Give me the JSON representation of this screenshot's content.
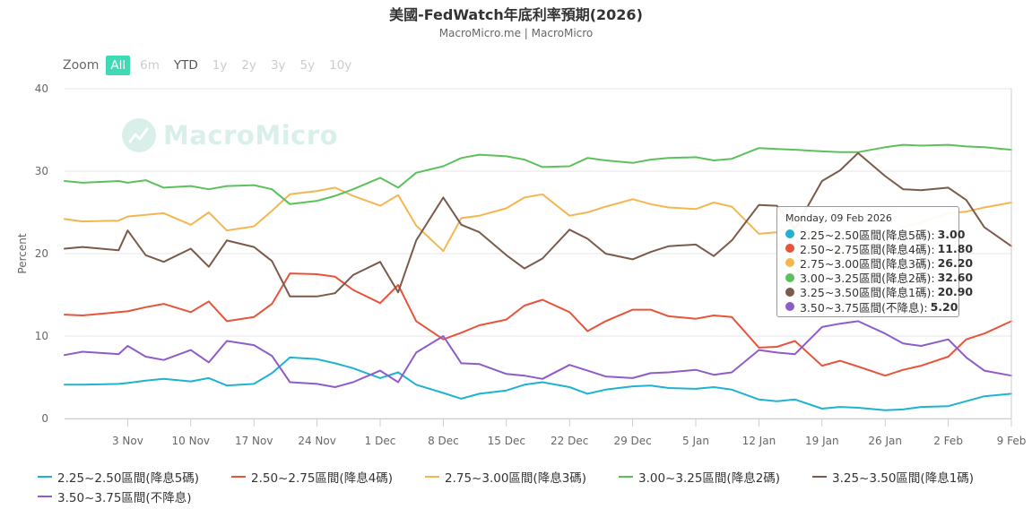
{
  "header": {
    "title": "美國-FedWatch年底利率預期(2026)",
    "subtitle": "MacroMicro.me | MacroMicro"
  },
  "watermark": {
    "text": "MacroMicro",
    "icon": "macromicro-logo-icon"
  },
  "zoom": {
    "label": "Zoom",
    "buttons": [
      {
        "label": "All",
        "state": "active"
      },
      {
        "label": "6m",
        "state": "disabled"
      },
      {
        "label": "YTD",
        "state": "enabled"
      },
      {
        "label": "1y",
        "state": "disabled"
      },
      {
        "label": "2y",
        "state": "disabled"
      },
      {
        "label": "3y",
        "state": "disabled"
      },
      {
        "label": "5y",
        "state": "disabled"
      },
      {
        "label": "10y",
        "state": "disabled"
      }
    ]
  },
  "tooltip": {
    "date": "Monday, 09 Feb 2026",
    "rows": [
      {
        "label": "2.25~2.50區間(降息5碼):",
        "value": "3.00",
        "color": "#1fb2d1"
      },
      {
        "label": "2.50~2.75區間(降息4碼):",
        "value": "11.80",
        "color": "#e8533b"
      },
      {
        "label": "2.75~3.00區間(降息3碼):",
        "value": "26.20",
        "color": "#f5b64f"
      },
      {
        "label": "3.00~3.25區間(降息2碼):",
        "value": "32.60",
        "color": "#5cc15c"
      },
      {
        "label": "3.25~3.50區間(降息1碼):",
        "value": "20.90",
        "color": "#7b5a4b"
      },
      {
        "label": "3.50~3.75區間(不降息):",
        "value": "5.20",
        "color": "#8e5cc9"
      }
    ]
  },
  "chart_data": {
    "type": "line",
    "title": "美國-FedWatch年底利率預期(2026)",
    "subtitle": "MacroMicro.me | MacroMicro",
    "ylabel": "Percent",
    "xlabel": "",
    "ylim": [
      0,
      40
    ],
    "yticks": [
      "0",
      "10",
      "20",
      "30",
      "40"
    ],
    "xlim": [
      "2025-10-27",
      "2026-02-09"
    ],
    "xticks": [
      {
        "label": "3 Nov",
        "date": "2025-11-03"
      },
      {
        "label": "10 Nov",
        "date": "2025-11-10"
      },
      {
        "label": "17 Nov",
        "date": "2025-11-17"
      },
      {
        "label": "24 Nov",
        "date": "2025-11-24"
      },
      {
        "label": "1 Dec",
        "date": "2025-12-01"
      },
      {
        "label": "8 Dec",
        "date": "2025-12-08"
      },
      {
        "label": "15 Dec",
        "date": "2025-12-15"
      },
      {
        "label": "22 Dec",
        "date": "2025-12-22"
      },
      {
        "label": "29 Dec",
        "date": "2025-12-29"
      },
      {
        "label": "5 Jan",
        "date": "2026-01-05"
      },
      {
        "label": "12 Jan",
        "date": "2026-01-12"
      },
      {
        "label": "19 Jan",
        "date": "2026-01-19"
      },
      {
        "label": "26 Jan",
        "date": "2026-01-26"
      },
      {
        "label": "2 Feb",
        "date": "2026-02-02"
      },
      {
        "label": "9 Feb",
        "date": "2026-02-09"
      }
    ],
    "grid": true,
    "legend_position": "bottom",
    "crosshair_date": "2026-02-09",
    "x": [
      "2025-10-27",
      "2025-10-29",
      "2025-11-02",
      "2025-11-03",
      "2025-11-05",
      "2025-11-07",
      "2025-11-10",
      "2025-11-12",
      "2025-11-14",
      "2025-11-17",
      "2025-11-19",
      "2025-11-21",
      "2025-11-24",
      "2025-11-26",
      "2025-11-28",
      "2025-12-01",
      "2025-12-03",
      "2025-12-05",
      "2025-12-08",
      "2025-12-10",
      "2025-12-12",
      "2025-12-15",
      "2025-12-17",
      "2025-12-19",
      "2025-12-22",
      "2025-12-24",
      "2025-12-26",
      "2025-12-29",
      "2025-12-31",
      "2026-01-02",
      "2026-01-05",
      "2026-01-07",
      "2026-01-09",
      "2026-01-12",
      "2026-01-14",
      "2026-01-16",
      "2026-01-19",
      "2026-01-21",
      "2026-01-23",
      "2026-01-26",
      "2026-01-28",
      "2026-01-30",
      "2026-02-02",
      "2026-02-04",
      "2026-02-06",
      "2026-02-09"
    ],
    "series": [
      {
        "name": "2.25~2.50區間(降息5碼)",
        "color": "#1fb2d1",
        "values": [
          4.1,
          4.1,
          4.2,
          4.3,
          4.6,
          4.8,
          4.5,
          4.9,
          4.0,
          4.2,
          5.5,
          7.4,
          7.2,
          6.7,
          6.1,
          4.9,
          5.6,
          4.1,
          3.1,
          2.4,
          3.0,
          3.4,
          4.1,
          4.4,
          3.8,
          3.0,
          3.5,
          3.9,
          4.0,
          3.7,
          3.6,
          3.8,
          3.5,
          2.3,
          2.1,
          2.3,
          1.2,
          1.4,
          1.3,
          1.0,
          1.1,
          1.4,
          1.5,
          2.1,
          2.7,
          3.0
        ]
      },
      {
        "name": "2.50~2.75區間(降息4碼)",
        "color": "#e8533b",
        "values": [
          12.6,
          12.5,
          12.9,
          13.0,
          13.5,
          13.9,
          12.9,
          14.2,
          11.8,
          12.3,
          13.9,
          17.6,
          17.5,
          17.2,
          15.6,
          14.0,
          16.2,
          11.8,
          9.6,
          10.4,
          11.3,
          12.0,
          13.7,
          14.4,
          12.9,
          10.6,
          11.8,
          13.2,
          13.2,
          12.4,
          12.1,
          12.5,
          12.3,
          8.6,
          8.7,
          9.4,
          6.4,
          7.0,
          6.3,
          5.2,
          5.9,
          6.4,
          7.5,
          9.6,
          10.3,
          11.8
        ]
      },
      {
        "name": "2.75~3.00區間(降息3碼)",
        "color": "#f5b64f",
        "values": [
          24.2,
          23.9,
          24.0,
          24.5,
          24.7,
          24.9,
          23.5,
          25.0,
          22.8,
          23.3,
          25.2,
          27.2,
          27.6,
          28.0,
          27.0,
          25.8,
          27.1,
          23.4,
          20.3,
          24.3,
          24.6,
          25.5,
          26.8,
          27.2,
          24.6,
          25.0,
          25.7,
          26.6,
          26.0,
          25.6,
          25.4,
          26.2,
          25.7,
          22.4,
          22.6,
          24.0,
          20.9,
          20.5,
          22.1,
          22.6,
          23.2,
          23.8,
          24.9,
          25.1,
          25.6,
          26.2
        ]
      },
      {
        "name": "3.00~3.25區間(降息2碼)",
        "color": "#5cc15c",
        "values": [
          28.8,
          28.6,
          28.8,
          28.6,
          28.9,
          28.0,
          28.2,
          27.8,
          28.2,
          28.3,
          27.8,
          26.0,
          26.4,
          27.0,
          27.8,
          29.2,
          28.0,
          29.8,
          30.6,
          31.6,
          32.0,
          31.8,
          31.4,
          30.5,
          30.6,
          31.6,
          31.3,
          31.0,
          31.4,
          31.6,
          31.7,
          31.3,
          31.5,
          32.8,
          32.7,
          32.6,
          32.4,
          32.3,
          32.3,
          32.9,
          33.2,
          33.1,
          33.2,
          33.0,
          32.9,
          32.6
        ]
      },
      {
        "name": "3.25~3.50區間(降息1碼)",
        "color": "#7b5a4b",
        "values": [
          20.6,
          20.8,
          20.4,
          22.8,
          19.8,
          19.0,
          20.6,
          18.4,
          21.6,
          20.8,
          19.1,
          14.8,
          14.8,
          15.2,
          17.4,
          19.0,
          15.3,
          21.6,
          26.8,
          23.5,
          22.6,
          19.8,
          18.2,
          19.4,
          22.9,
          21.8,
          20.0,
          19.3,
          20.2,
          20.9,
          21.1,
          19.7,
          21.6,
          25.9,
          25.8,
          23.0,
          28.8,
          30.1,
          32.2,
          29.4,
          27.8,
          27.7,
          28.0,
          26.5,
          23.2,
          20.9
        ]
      },
      {
        "name": "3.50~3.75區間(不降息)",
        "color": "#8e5cc9",
        "values": [
          7.7,
          8.1,
          7.8,
          8.8,
          7.5,
          7.1,
          8.3,
          6.8,
          9.4,
          8.9,
          7.6,
          4.4,
          4.2,
          3.8,
          4.4,
          5.8,
          4.4,
          8.0,
          10.0,
          6.7,
          6.6,
          5.4,
          5.2,
          4.8,
          6.5,
          5.8,
          5.1,
          4.9,
          5.5,
          5.6,
          5.9,
          5.3,
          5.6,
          8.3,
          8.0,
          7.8,
          11.1,
          11.5,
          11.8,
          10.3,
          9.1,
          8.8,
          9.6,
          7.4,
          5.8,
          5.2
        ]
      }
    ]
  }
}
